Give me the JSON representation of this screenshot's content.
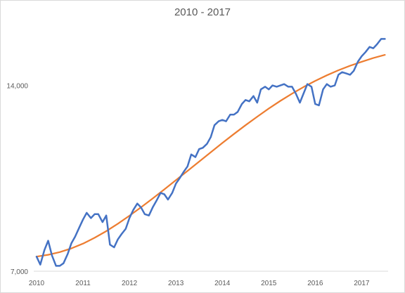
{
  "chart_data": {
    "type": "line",
    "title": "2010 - 2017",
    "xlabel": "",
    "ylabel": "",
    "x_ticks": [
      "2010",
      "2011",
      "2012",
      "2013",
      "2014",
      "2015",
      "2016",
      "2017"
    ],
    "y_ticks": [
      "7,000",
      "14,000"
    ],
    "y_tick_values": [
      7000,
      14000
    ],
    "xlim": [
      2010.0,
      2017.6
    ],
    "ylim": [
      7000,
      16000
    ],
    "grid": false,
    "legend": "none",
    "series": [
      {
        "color": "#4472c4",
        "x": [
          2010.0,
          2010.08,
          2010.17,
          2010.25,
          2010.33,
          2010.42,
          2010.5,
          2010.58,
          2010.67,
          2010.75,
          2010.83,
          2010.92,
          2011.0,
          2011.08,
          2011.17,
          2011.25,
          2011.33,
          2011.42,
          2011.5,
          2011.58,
          2011.67,
          2011.75,
          2011.83,
          2011.92,
          2012.0,
          2012.08,
          2012.17,
          2012.25,
          2012.33,
          2012.42,
          2012.5,
          2012.58,
          2012.67,
          2012.75,
          2012.83,
          2012.92,
          2013.0,
          2013.08,
          2013.17,
          2013.25,
          2013.33,
          2013.42,
          2013.5,
          2013.58,
          2013.67,
          2013.75,
          2013.83,
          2013.92,
          2014.0,
          2014.08,
          2014.17,
          2014.25,
          2014.33,
          2014.42,
          2014.5,
          2014.58,
          2014.67,
          2014.75,
          2014.83,
          2014.92,
          2015.0,
          2015.08,
          2015.17,
          2015.25,
          2015.33,
          2015.42,
          2015.5,
          2015.58,
          2015.67,
          2015.75,
          2015.83,
          2015.92,
          2016.0,
          2016.08,
          2016.17,
          2016.25,
          2016.33,
          2016.42,
          2016.5,
          2016.58,
          2016.67,
          2016.75,
          2016.83,
          2016.92,
          2017.0,
          2017.08,
          2017.17,
          2017.25,
          2017.33,
          2017.42,
          2017.5
        ],
        "values": [
          7550,
          7250,
          7800,
          8150,
          7600,
          7200,
          7200,
          7300,
          7650,
          8050,
          8300,
          8650,
          8950,
          9200,
          9000,
          9150,
          9150,
          8850,
          9100,
          8000,
          7900,
          8200,
          8400,
          8600,
          9000,
          9300,
          9550,
          9400,
          9150,
          9100,
          9400,
          9650,
          9950,
          9900,
          9700,
          9950,
          10300,
          10500,
          10750,
          10950,
          11400,
          11300,
          11600,
          11650,
          11800,
          12050,
          12500,
          12650,
          12700,
          12650,
          12900,
          12900,
          13000,
          13300,
          13450,
          13400,
          13600,
          13350,
          13850,
          13950,
          13850,
          14000,
          13950,
          14000,
          14050,
          13950,
          13950,
          13700,
          13350,
          13700,
          14050,
          13950,
          13300,
          13250,
          13850,
          14050,
          13950,
          14000,
          14400,
          14500,
          14450,
          14400,
          14550,
          14900,
          15100,
          15250,
          15450,
          15400,
          15550,
          15750,
          15750
        ]
      },
      {
        "color": "#ed7d31",
        "x": [
          2010.0,
          2010.25,
          2010.5,
          2010.75,
          2011.0,
          2011.25,
          2011.5,
          2011.75,
          2012.0,
          2012.25,
          2012.5,
          2012.75,
          2013.0,
          2013.25,
          2013.5,
          2013.75,
          2014.0,
          2014.25,
          2014.5,
          2014.75,
          2015.0,
          2015.25,
          2015.5,
          2015.75,
          2016.0,
          2016.25,
          2016.5,
          2016.75,
          2017.0,
          2017.25,
          2017.5
        ],
        "values": [
          7550,
          7620,
          7720,
          7860,
          8040,
          8260,
          8510,
          8790,
          9090,
          9410,
          9740,
          10080,
          10430,
          10780,
          11130,
          11480,
          11830,
          12170,
          12500,
          12820,
          13130,
          13420,
          13690,
          13940,
          14170,
          14380,
          14570,
          14740,
          14890,
          15030,
          15150
        ]
      }
    ]
  }
}
